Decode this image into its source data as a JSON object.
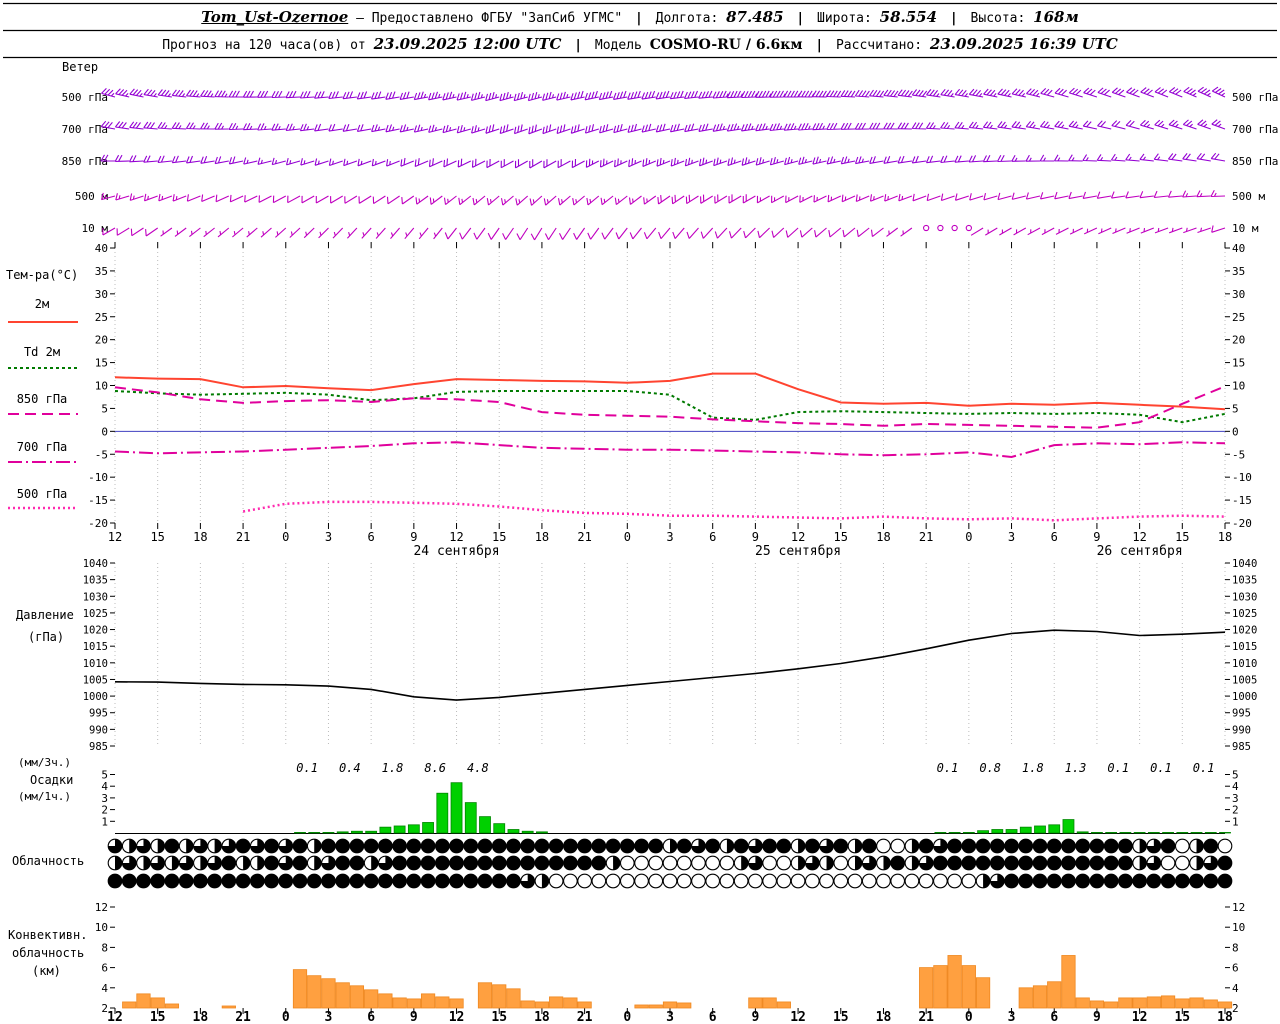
{
  "header": {
    "station": "Tom_Ust-Ozernoe",
    "provider": "— Предоставлено ФГБУ \"ЗапСиб УГМС\"",
    "sep": "|",
    "lon_label": "Долгота:",
    "lon_value": "87.485",
    "lat_label": "Широта:",
    "lat_value": "58.554",
    "alt_label": "Высота:",
    "alt_value": "168м",
    "forecast_label": "Прогноз на 120 часа(ов) от",
    "forecast_time": "23.09.2025 12:00 UTC",
    "model_label": "Модель",
    "model_value": "COSMO-RU / 6.6км",
    "calc_label": "Рассчитано:",
    "calc_value": "23.09.2025 16:39 UTC"
  },
  "panel_labels": {
    "wind": "Ветер",
    "temp": "Тем-ра(°C)",
    "pressure1": "Давление",
    "pressure2": "(гПа)",
    "precip1": "(мм/3ч.)",
    "precip2": "Осадки",
    "precip3": "(мм/1ч.)",
    "clouds": "Облачность",
    "conv1": "Конвективн.",
    "conv2": "облачность",
    "conv3": "(км)"
  },
  "axis": {
    "hours": [
      "12",
      "15",
      "18",
      "21",
      "0",
      "3",
      "6",
      "9",
      "12",
      "15",
      "18",
      "21",
      "0",
      "3",
      "6",
      "9",
      "12",
      "15",
      "18",
      "21",
      "0",
      "3",
      "6",
      "9",
      "12",
      "15",
      "18"
    ],
    "dates": [
      {
        "hour": 24,
        "text": "24 сентября"
      },
      {
        "hour": 48,
        "text": "25 сентября"
      },
      {
        "hour": 72,
        "text": "26 сентября"
      }
    ]
  },
  "chart_data": [
    {
      "type": "wind-barbs",
      "title": "Ветер",
      "x_step_hours": 3,
      "levels": [
        {
          "label": "500 гПа",
          "color": "#9400d3",
          "speeds": [
            18,
            18,
            17,
            16,
            16,
            15,
            15,
            16,
            17,
            18,
            18,
            19,
            20,
            20,
            21,
            22,
            22,
            21,
            20,
            19,
            18,
            17,
            16,
            15,
            15,
            16,
            17
          ],
          "dirs": [
            285,
            280,
            275,
            270,
            268,
            265,
            262,
            260,
            258,
            255,
            255,
            258,
            260,
            262,
            265,
            268,
            270,
            272,
            275,
            278,
            280,
            282,
            285,
            288,
            290,
            292,
            295
          ]
        },
        {
          "label": "700 гПа",
          "color": "#9400d3",
          "speeds": [
            14,
            14,
            13,
            12,
            12,
            11,
            11,
            12,
            13,
            14,
            14,
            15,
            15,
            16,
            16,
            17,
            17,
            16,
            15,
            14,
            13,
            12,
            12,
            11,
            11,
            12,
            13
          ],
          "dirs": [
            280,
            275,
            272,
            268,
            265,
            262,
            260,
            258,
            255,
            252,
            250,
            252,
            255,
            258,
            260,
            262,
            265,
            268,
            270,
            272,
            275,
            278,
            280,
            282,
            285,
            288,
            290
          ]
        },
        {
          "label": "850 гПа",
          "color": "#9400d3",
          "speeds": [
            10,
            10,
            9,
            9,
            8,
            8,
            8,
            9,
            10,
            10,
            11,
            11,
            12,
            12,
            12,
            13,
            13,
            12,
            11,
            10,
            9,
            9,
            8,
            8,
            8,
            9,
            10
          ],
          "dirs": [
            270,
            265,
            262,
            258,
            255,
            252,
            250,
            248,
            245,
            242,
            240,
            242,
            245,
            248,
            250,
            252,
            255,
            258,
            260,
            262,
            265,
            268,
            270,
            272,
            275,
            278,
            280
          ]
        },
        {
          "label": "500 м",
          "color": "#c000c0",
          "speeds": [
            7,
            7,
            6,
            6,
            5,
            5,
            5,
            6,
            7,
            7,
            8,
            8,
            8,
            9,
            9,
            9,
            8,
            8,
            7,
            6,
            6,
            5,
            5,
            5,
            6,
            6,
            7
          ],
          "dirs": [
            255,
            250,
            248,
            245,
            242,
            240,
            238,
            235,
            232,
            230,
            228,
            230,
            232,
            235,
            238,
            240,
            242,
            245,
            248,
            250,
            252,
            255,
            258,
            260,
            262,
            265,
            268
          ]
        },
        {
          "label": "10 м",
          "color": "#c000c0",
          "speeds": [
            4,
            4,
            3,
            3,
            3,
            2,
            2,
            3,
            4,
            4,
            5,
            5,
            5,
            6,
            6,
            6,
            5,
            5,
            4,
            0.8,
            0.5,
            2,
            2,
            2,
            3,
            3,
            4
          ],
          "dirs": [
            240,
            235,
            232,
            230,
            228,
            225,
            222,
            220,
            218,
            215,
            212,
            215,
            218,
            220,
            222,
            225,
            228,
            230,
            232,
            235,
            238,
            240,
            242,
            245,
            248,
            250,
            252
          ]
        }
      ]
    },
    {
      "type": "line",
      "title": "Тем-ра(°C)",
      "ylim": [
        -20,
        40
      ],
      "ytick_step": 5,
      "x_step_hours": 3,
      "series": [
        {
          "name": "2м",
          "color": "#ff4430",
          "dash": "",
          "width": 2,
          "values": [
            11.8,
            11.5,
            11.4,
            9.6,
            9.9,
            9.4,
            9.0,
            10.3,
            11.4,
            11.2,
            11.0,
            10.9,
            10.6,
            11.0,
            12.6,
            12.6,
            9.2,
            6.3,
            6.0,
            6.2,
            5.6,
            6.0,
            5.8,
            6.2,
            5.8,
            5.4,
            4.8
          ]
        },
        {
          "name": "Td 2м",
          "color": "#007a00",
          "dash": "3,3",
          "width": 2,
          "values": [
            8.8,
            8.3,
            8.0,
            8.2,
            8.4,
            8.0,
            6.8,
            7.2,
            8.6,
            8.8,
            8.8,
            8.8,
            8.8,
            8.0,
            3.0,
            2.5,
            4.2,
            4.4,
            4.2,
            4.0,
            3.8,
            4.0,
            3.8,
            4.0,
            3.6,
            2.0,
            3.8
          ]
        },
        {
          "name": "850 гПа",
          "color": "#e0009c",
          "dash": "11,6",
          "width": 2,
          "values": [
            9.6,
            8.5,
            7.0,
            6.2,
            6.6,
            6.8,
            6.4,
            7.2,
            7.0,
            6.4,
            4.2,
            3.6,
            3.4,
            3.2,
            2.6,
            2.2,
            1.8,
            1.6,
            1.2,
            1.6,
            1.4,
            1.2,
            1.0,
            0.8,
            2.0,
            6.0,
            9.8
          ]
        },
        {
          "name": "700 гПа",
          "color": "#e0009c",
          "dash": "14,4,2,4",
          "width": 2,
          "values": [
            -4.4,
            -4.8,
            -4.6,
            -4.4,
            -4.0,
            -3.6,
            -3.2,
            -2.6,
            -2.4,
            -3.0,
            -3.6,
            -3.8,
            -4.0,
            -4.0,
            -4.2,
            -4.4,
            -4.6,
            -5.0,
            -5.2,
            -5.0,
            -4.6,
            -5.6,
            -3.0,
            -2.6,
            -2.8,
            -2.4,
            -2.6
          ]
        },
        {
          "name": "500 гПа",
          "color": "#ff2ab0",
          "dash": "2,3",
          "width": 2.5,
          "values": [
            null,
            null,
            null,
            -17.5,
            -15.8,
            -15.4,
            -15.4,
            -15.6,
            -15.8,
            -16.4,
            -17.2,
            -17.8,
            -18.0,
            -18.4,
            -18.4,
            -18.6,
            -18.8,
            -19.0,
            -18.6,
            -19.0,
            -19.2,
            -19.0,
            -19.4,
            -19.0,
            -18.6,
            -18.4,
            -18.6
          ]
        }
      ]
    },
    {
      "type": "line",
      "title": "Давление (гПа)",
      "ylim": [
        985,
        1040
      ],
      "ytick_step": 5,
      "x_step_hours": 3,
      "series": [
        {
          "name": "Давление",
          "color": "#000000",
          "dash": "",
          "width": 1.6,
          "values": [
            1004.3,
            1004.2,
            1003.8,
            1003.5,
            1003.4,
            1003.0,
            1002.0,
            999.8,
            998.8,
            999.6,
            1000.8,
            1002.0,
            1003.2,
            1004.4,
            1005.6,
            1006.8,
            1008.2,
            1009.8,
            1011.8,
            1014.2,
            1016.8,
            1018.8,
            1019.8,
            1019.4,
            1018.2,
            1018.6,
            1019.2
          ]
        }
      ]
    },
    {
      "type": "bar",
      "title": "Осадки",
      "unit_top": "(мм/3ч.)",
      "unit_bottom": "(мм/1ч.)",
      "ylim": [
        0,
        5
      ],
      "yticks": [
        "5",
        "4",
        "3",
        "2",
        "1"
      ],
      "bar_color": "#00d000",
      "hourly": [
        [
          13,
          0.05
        ],
        [
          14,
          0.05
        ],
        [
          15,
          0.05
        ],
        [
          16,
          0.1
        ],
        [
          17,
          0.15
        ],
        [
          18,
          0.15
        ],
        [
          19,
          0.5
        ],
        [
          20,
          0.6
        ],
        [
          21,
          0.7
        ],
        [
          22,
          0.9
        ],
        [
          23,
          3.4
        ],
        [
          24,
          4.3
        ],
        [
          25,
          2.6
        ],
        [
          26,
          1.4
        ],
        [
          27,
          0.8
        ],
        [
          28,
          0.3
        ],
        [
          29,
          0.15
        ],
        [
          30,
          0.1
        ],
        [
          58,
          0.05
        ],
        [
          59,
          0.05
        ],
        [
          60,
          0.05
        ],
        [
          61,
          0.2
        ],
        [
          62,
          0.3
        ],
        [
          63,
          0.3
        ],
        [
          64,
          0.5
        ],
        [
          65,
          0.6
        ],
        [
          66,
          0.7
        ],
        [
          67,
          1.15
        ],
        [
          68,
          0.1
        ],
        [
          69,
          0.05
        ],
        [
          70,
          0.05
        ],
        [
          71,
          0.05
        ],
        [
          72,
          0.05
        ],
        [
          73,
          0.05
        ],
        [
          74,
          0.05
        ],
        [
          75,
          0.05
        ],
        [
          76,
          0.05
        ],
        [
          77,
          0.05
        ],
        [
          78,
          0.05
        ]
      ],
      "labels_3h": [
        {
          "hour": 13.5,
          "text": "0.1"
        },
        {
          "hour": 16.5,
          "text": "0.4"
        },
        {
          "hour": 19.5,
          "text": "1.8"
        },
        {
          "hour": 22.5,
          "text": "8.6"
        },
        {
          "hour": 25.5,
          "text": "4.8"
        },
        {
          "hour": 58.5,
          "text": "0.1"
        },
        {
          "hour": 61.5,
          "text": "0.8"
        },
        {
          "hour": 64.5,
          "text": "1.8"
        },
        {
          "hour": 67.5,
          "text": "1.3"
        },
        {
          "hour": 70.5,
          "text": "0.1"
        },
        {
          "hour": 73.5,
          "text": "0.1"
        },
        {
          "hour": 76.5,
          "text": "0.1"
        }
      ]
    },
    {
      "type": "cloud-symbols",
      "title": "Облачность",
      "fill_scale": "0=ясно 4=половина 8=сплошная (доли круга)",
      "rows": [
        [
          "6464846468",
          "6868488888",
          "8888888888",
          "8888888884",
          "8684868848",
          "6848004868",
          "8888888888",
          "884680480"
        ],
        [
          "4646464684",
          "4868468846",
          "8888888888",
          "8888840000",
          "0000460046",
          "4046484688",
          "8888888888",
          "884600468"
        ],
        [
          "8888888888",
          "8888888888",
          "8888888886",
          "4000000000",
          "0000000000",
          "0000000000",
          "0468888888",
          "888888888"
        ]
      ]
    },
    {
      "type": "bar",
      "title": "Конвективная облачность (км)",
      "ylim": [
        2,
        12
      ],
      "yticks": [
        "12",
        "10",
        "8",
        "6",
        "4",
        "2"
      ],
      "bar_color": "#ffa040",
      "hourly": [
        [
          1,
          2.6
        ],
        [
          2,
          3.4
        ],
        [
          3,
          3.0
        ],
        [
          4,
          2.4
        ],
        [
          8,
          2.2
        ],
        [
          13,
          5.8
        ],
        [
          14,
          5.2
        ],
        [
          15,
          4.9
        ],
        [
          16,
          4.5
        ],
        [
          17,
          4.2
        ],
        [
          18,
          3.8
        ],
        [
          19,
          3.4
        ],
        [
          20,
          3.0
        ],
        [
          21,
          2.9
        ],
        [
          22,
          3.4
        ],
        [
          23,
          3.1
        ],
        [
          24,
          2.9
        ],
        [
          26,
          4.5
        ],
        [
          27,
          4.3
        ],
        [
          28,
          3.9
        ],
        [
          29,
          2.7
        ],
        [
          30,
          2.6
        ],
        [
          31,
          3.1
        ],
        [
          32,
          3.0
        ],
        [
          33,
          2.6
        ],
        [
          37,
          2.3
        ],
        [
          38,
          2.3
        ],
        [
          39,
          2.6
        ],
        [
          40,
          2.5
        ],
        [
          45,
          3.0
        ],
        [
          46,
          3.0
        ],
        [
          47,
          2.6
        ],
        [
          57,
          6.0
        ],
        [
          58,
          6.2
        ],
        [
          59,
          7.2
        ],
        [
          60,
          6.2
        ],
        [
          61,
          5.0
        ],
        [
          64,
          4.0
        ],
        [
          65,
          4.2
        ],
        [
          66,
          4.6
        ],
        [
          67,
          7.2
        ],
        [
          68,
          3.0
        ],
        [
          69,
          2.7
        ],
        [
          70,
          2.6
        ],
        [
          71,
          3.0
        ],
        [
          72,
          3.0
        ],
        [
          73,
          3.1
        ],
        [
          74,
          3.2
        ],
        [
          75,
          2.9
        ],
        [
          76,
          3.0
        ],
        [
          77,
          2.8
        ],
        [
          78,
          2.6
        ]
      ]
    }
  ]
}
